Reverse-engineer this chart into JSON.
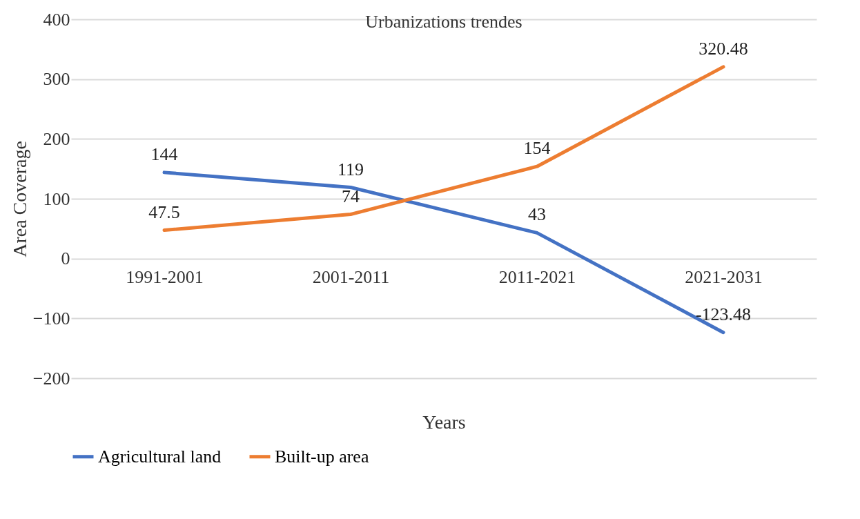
{
  "chart_data": {
    "type": "line",
    "title": "Urbanizations trendes",
    "xlabel": "Years",
    "ylabel": "Area Coverage",
    "categories": [
      "1991-2001",
      "2001-2011",
      "2011-2021",
      "2021-2031"
    ],
    "series": [
      {
        "name": "Agricultural land",
        "color": "#4472c4",
        "values": [
          144,
          119,
          43,
          -123.48
        ]
      },
      {
        "name": "Built-up area",
        "color": "#ed7d31",
        "values": [
          47.5,
          74,
          154,
          320.48
        ]
      }
    ],
    "ylim": [
      -200,
      400
    ],
    "yticks": [
      -200,
      -100,
      0,
      100,
      200,
      300,
      400
    ],
    "grid": "y",
    "legend": "bottom",
    "data_labels": true
  }
}
